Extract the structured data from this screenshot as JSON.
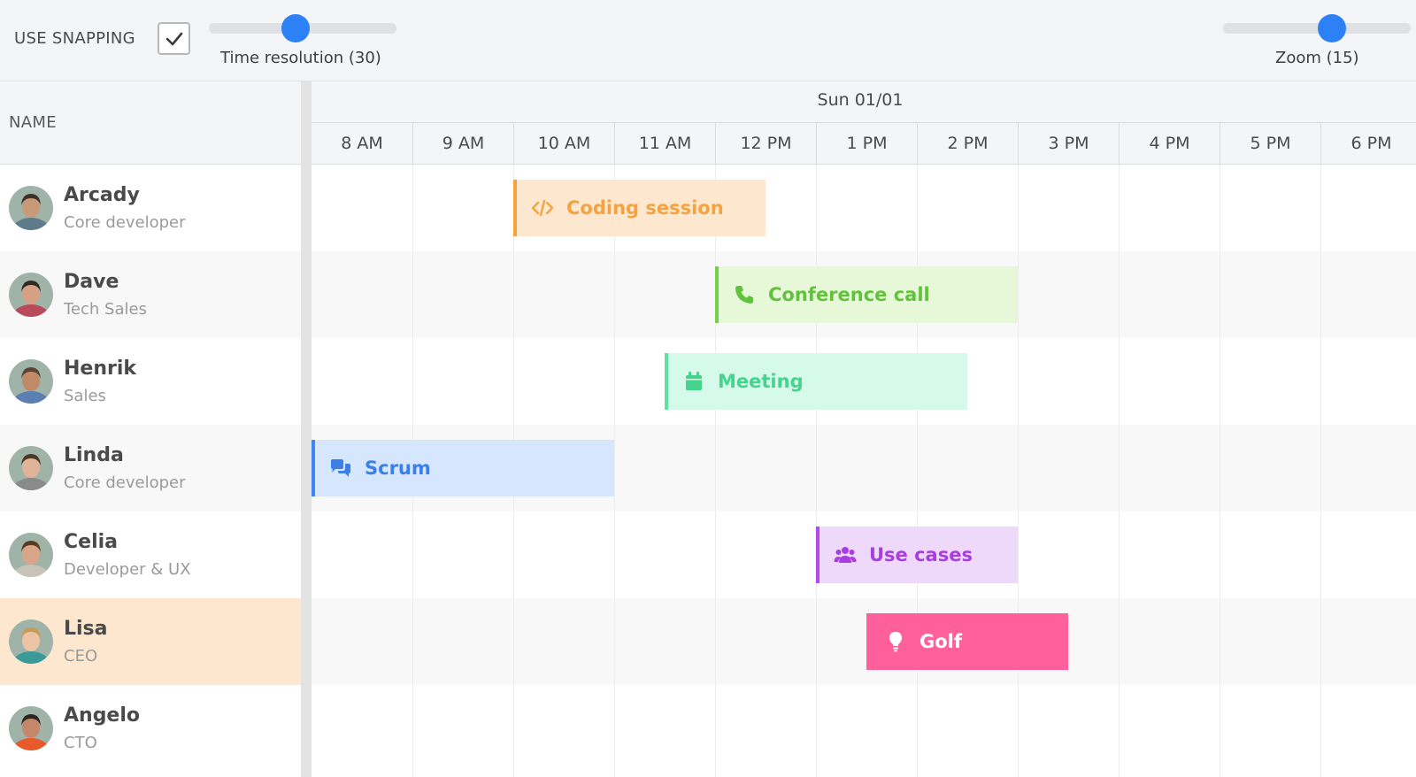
{
  "toolbar": {
    "snapping_label": "USE SNAPPING",
    "snapping_checked": true,
    "time_resolution": {
      "caption": "Time resolution (30)",
      "value": 30,
      "fraction": 0.46
    },
    "zoom": {
      "caption": "Zoom (15)",
      "value": 15,
      "fraction": 0.58
    }
  },
  "grid": {
    "name_header": "NAME",
    "date": "Sun 01/01",
    "hours": [
      "8 AM",
      "9 AM",
      "10 AM",
      "11 AM",
      "12 PM",
      "1 PM",
      "2 PM",
      "3 PM",
      "4 PM",
      "5 PM",
      "6 PM"
    ]
  },
  "resources": [
    {
      "name": "Arcady",
      "role": "Core developer",
      "selected": false
    },
    {
      "name": "Dave",
      "role": "Tech Sales",
      "selected": false
    },
    {
      "name": "Henrik",
      "role": "Sales",
      "selected": false
    },
    {
      "name": "Linda",
      "role": "Core developer",
      "selected": false
    },
    {
      "name": "Celia",
      "role": "Developer & UX",
      "selected": false
    },
    {
      "name": "Lisa",
      "role": "CEO",
      "selected": true
    },
    {
      "name": "Angelo",
      "role": "CTO",
      "selected": false
    }
  ],
  "events": [
    {
      "name": "Coding session",
      "resource": 0,
      "start_hour": 10,
      "end_hour": 12.5,
      "icon": "code-icon",
      "color": "#f7a23d",
      "bg": "#fde8cf",
      "text": "#f4a340"
    },
    {
      "name": "Conference call",
      "resource": 1,
      "start_hour": 12,
      "end_hour": 15,
      "icon": "phone-icon",
      "color": "#72d04b",
      "bg": "#e7f8d9",
      "text": "#62c23d"
    },
    {
      "name": "Meeting",
      "resource": 2,
      "start_hour": 11.5,
      "end_hour": 14.5,
      "icon": "calendar-icon",
      "color": "#5fe0a0",
      "bg": "#d5faea",
      "text": "#45d38d"
    },
    {
      "name": "Scrum",
      "resource": 3,
      "start_hour": 8,
      "end_hour": 11,
      "icon": "chat-icon",
      "color": "#3d86ef",
      "bg": "#d6e6fd",
      "text": "#3d7fe8"
    },
    {
      "name": "Use cases",
      "resource": 4,
      "start_hour": 13,
      "end_hour": 15,
      "icon": "users-icon",
      "color": "#b548e8",
      "bg": "#efd9fb",
      "text": "#a83ee0"
    },
    {
      "name": "Golf",
      "resource": 5,
      "start_hour": 13.5,
      "end_hour": 15.5,
      "icon": "lightbulb-icon",
      "color": "#ff5f9a",
      "bg": "#ff5f9a",
      "text": "#ffffff"
    }
  ],
  "colors": {
    "accent": "#2d81f7",
    "selected_row": "#fde8cf",
    "alt_row": "#f8f8f8"
  }
}
